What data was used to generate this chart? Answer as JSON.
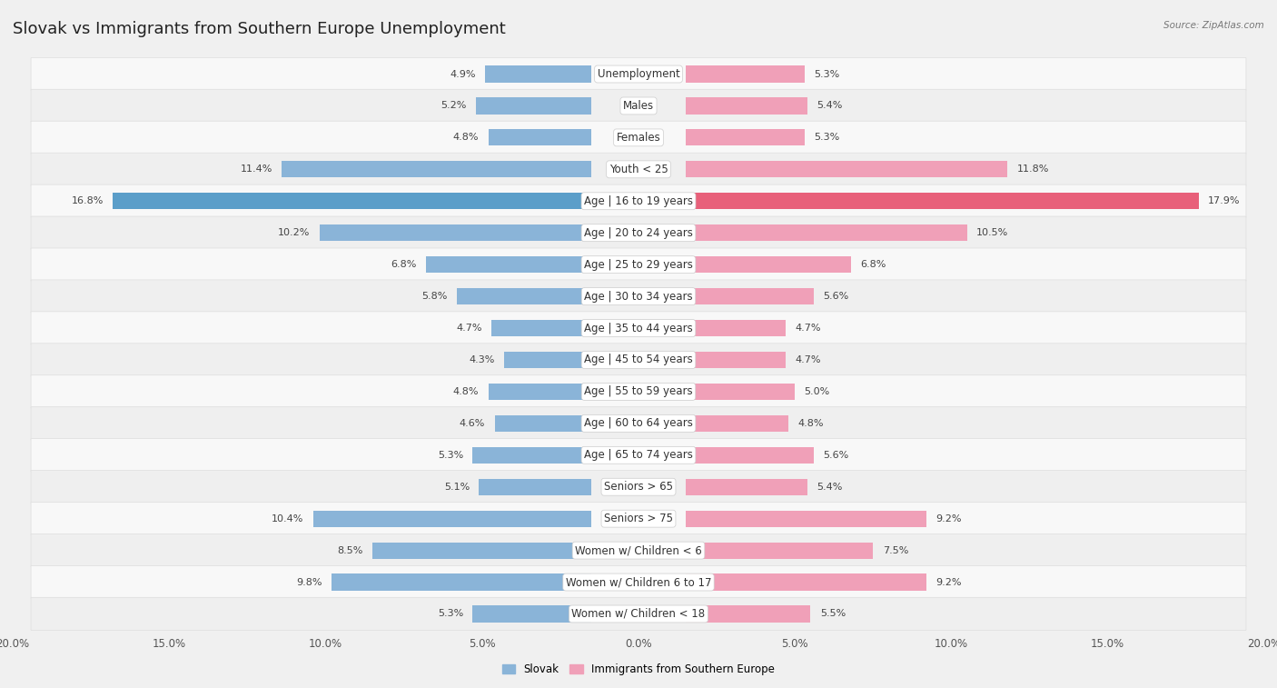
{
  "title": "Slovak vs Immigrants from Southern Europe Unemployment",
  "source": "Source: ZipAtlas.com",
  "categories": [
    "Unemployment",
    "Males",
    "Females",
    "Youth < 25",
    "Age | 16 to 19 years",
    "Age | 20 to 24 years",
    "Age | 25 to 29 years",
    "Age | 30 to 34 years",
    "Age | 35 to 44 years",
    "Age | 45 to 54 years",
    "Age | 55 to 59 years",
    "Age | 60 to 64 years",
    "Age | 65 to 74 years",
    "Seniors > 65",
    "Seniors > 75",
    "Women w/ Children < 6",
    "Women w/ Children 6 to 17",
    "Women w/ Children < 18"
  ],
  "slovak_values": [
    4.9,
    5.2,
    4.8,
    11.4,
    16.8,
    10.2,
    6.8,
    5.8,
    4.7,
    4.3,
    4.8,
    4.6,
    5.3,
    5.1,
    10.4,
    8.5,
    9.8,
    5.3
  ],
  "immigrant_values": [
    5.3,
    5.4,
    5.3,
    11.8,
    17.9,
    10.5,
    6.8,
    5.6,
    4.7,
    4.7,
    5.0,
    4.8,
    5.6,
    5.4,
    9.2,
    7.5,
    9.2,
    5.5
  ],
  "slovak_color": "#8ab4d8",
  "immigrant_color": "#f0a0b8",
  "highlight_slovak_color": "#5b9ec9",
  "highlight_immigrant_color": "#e8607a",
  "highlight_rows": [
    4
  ],
  "xlim": 20.0,
  "bar_height": 0.52,
  "background_color": "#f0f0f0",
  "row_bg_color_odd": "#f8f8f8",
  "row_bg_color_even": "#efefef",
  "row_border_color": "#dddddd",
  "legend_slovak": "Slovak",
  "legend_immigrant": "Immigrants from Southern Europe",
  "title_fontsize": 13,
  "label_fontsize": 8.5,
  "axis_fontsize": 8.5,
  "value_fontsize": 8.0
}
